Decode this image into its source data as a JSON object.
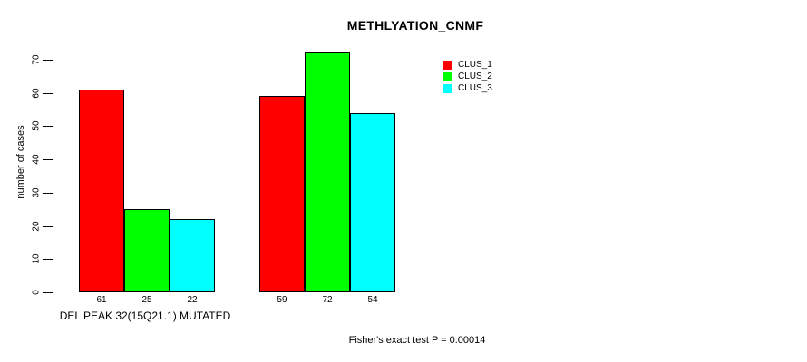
{
  "chart_data": {
    "type": "bar",
    "title": "METHLYATION_CNMF",
    "ylabel": "number of cases",
    "xlabel": "DEL PEAK 32(15Q21.1) MUTATED",
    "footer": "Fisher's exact test P = 0.00014",
    "yticks": [
      0,
      10,
      20,
      30,
      40,
      50,
      60,
      70
    ],
    "ylim": [
      0,
      72
    ],
    "grid": false,
    "legend_position": "top-right",
    "bar_border_color": "#000000",
    "series": [
      {
        "name": "CLUS_1",
        "color": "#FF0000",
        "values": [
          61,
          59
        ]
      },
      {
        "name": "CLUS_2",
        "color": "#00FF00",
        "values": [
          25,
          72
        ]
      },
      {
        "name": "CLUS_3",
        "color": "#00FFFF",
        "values": [
          22,
          54
        ]
      }
    ]
  }
}
